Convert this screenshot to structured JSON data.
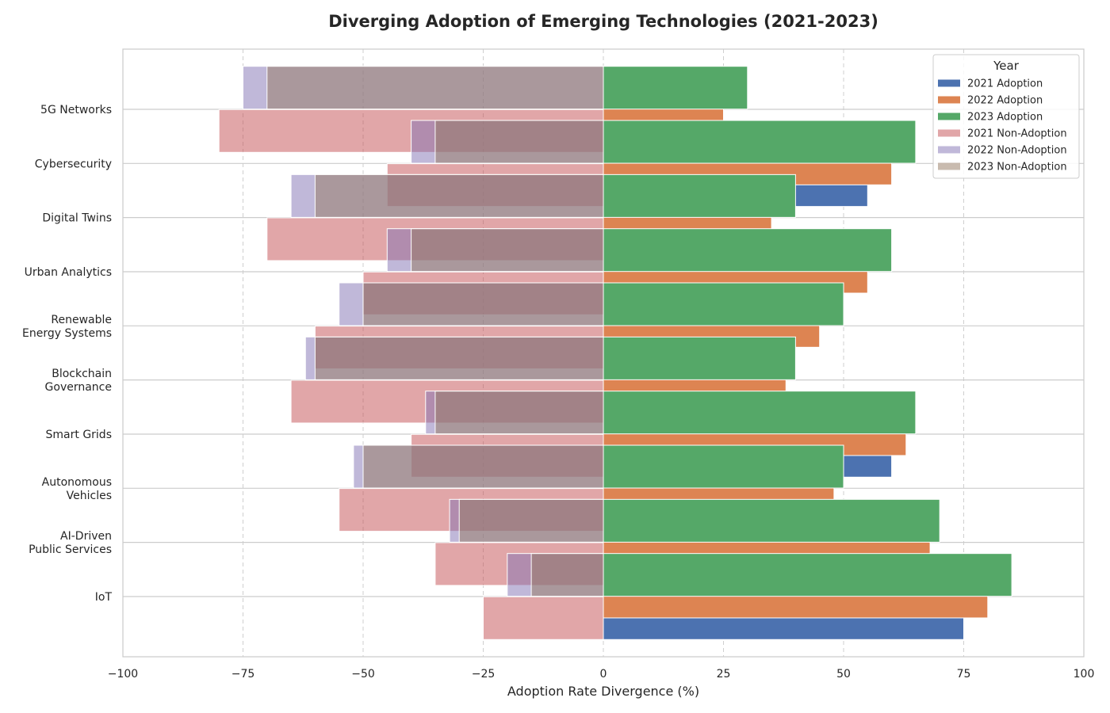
{
  "chart_data": {
    "type": "bar",
    "orientation": "horizontal",
    "title": "Diverging Adoption of Emerging Technologies (2021-2023)",
    "xlabel": "Adoption Rate Divergence (%)",
    "ylabel": "",
    "xlim": [
      -100,
      100
    ],
    "xticks": [
      -100,
      -75,
      -50,
      -25,
      0,
      25,
      50,
      75,
      100
    ],
    "xtick_labels": [
      "−100",
      "−75",
      "−50",
      "−25",
      "0",
      "25",
      "50",
      "75",
      "100"
    ],
    "grid": true,
    "legend_title": "Year",
    "legend_position": "top-right",
    "categories": [
      "5G Networks",
      "Cybersecurity",
      "Digital Twins",
      "Urban Analytics",
      "Renewable\nEnergy Systems",
      "Blockchain\nGovernance",
      "Smart Grids",
      "Autonomous\nVehicles",
      "AI-Driven\nPublic Services",
      "IoT"
    ],
    "series": [
      {
        "name": "2021 Adoption",
        "color": "#4c72b0",
        "values": [
          20,
          55,
          30,
          50,
          40,
          35,
          60,
          45,
          65,
          75
        ]
      },
      {
        "name": "2022 Adoption",
        "color": "#dd8452",
        "values": [
          25,
          60,
          35,
          55,
          45,
          38,
          63,
          48,
          68,
          80
        ]
      },
      {
        "name": "2023 Adoption",
        "color": "#55a868",
        "values": [
          30,
          65,
          40,
          60,
          50,
          40,
          65,
          50,
          70,
          85
        ]
      },
      {
        "name": "2021 Non-Adoption",
        "color": "#c44e52",
        "values": [
          -80,
          -45,
          -70,
          -50,
          -60,
          -65,
          -40,
          -55,
          -35,
          -25
        ]
      },
      {
        "name": "2022 Non-Adoption",
        "color": "#8172b3",
        "values": [
          -75,
          -40,
          -65,
          -45,
          -55,
          -62,
          -37,
          -52,
          -32,
          -20
        ]
      },
      {
        "name": "2023 Non-Adoption",
        "color": "#937860",
        "values": [
          -70,
          -35,
          -60,
          -40,
          -50,
          -60,
          -35,
          -50,
          -30,
          -15
        ]
      }
    ]
  }
}
